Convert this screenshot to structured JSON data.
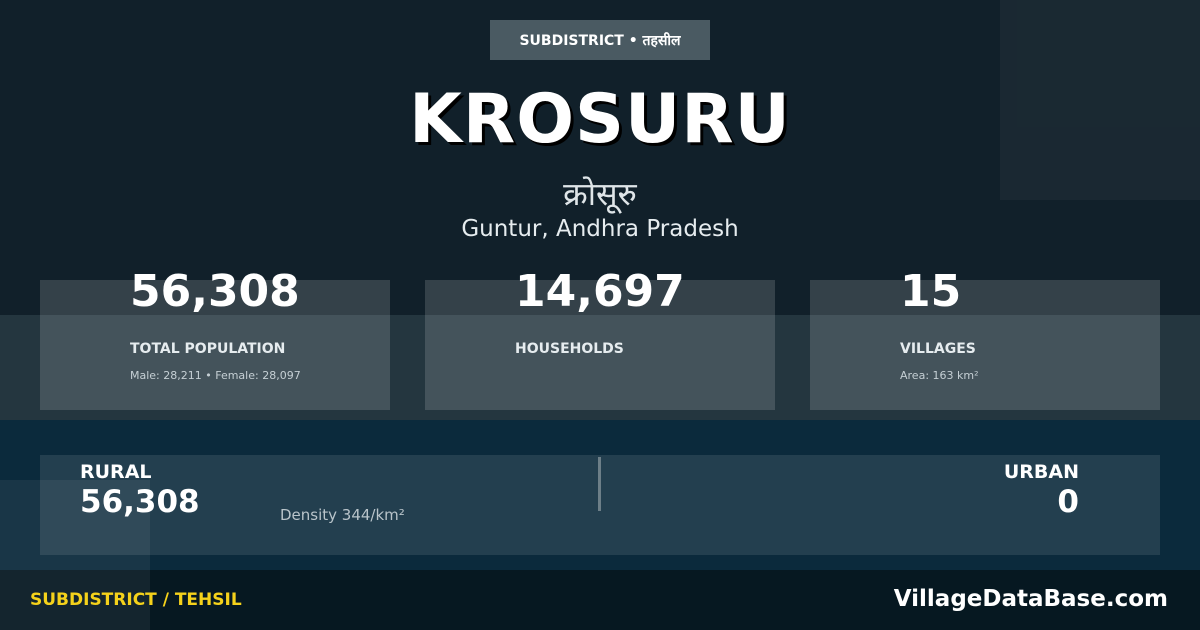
{
  "badge": "SUBDISTRICT • तहसील",
  "title": "KROSURU",
  "title_hindi": "क्रोसूरु",
  "location": "Guntur, Andhra Pradesh",
  "stats": [
    {
      "value": "56,308",
      "label": "TOTAL POPULATION",
      "sub": "Male: 28,211 • Female: 28,097"
    },
    {
      "value": "14,697",
      "label": "HOUSEHOLDS",
      "sub": ""
    },
    {
      "value": "15",
      "label": "VILLAGES",
      "sub": "Area: 163 km²"
    }
  ],
  "rural": {
    "label": "RURAL",
    "value": "56,308"
  },
  "urban": {
    "label": "URBAN",
    "value": "0"
  },
  "density": "Density 344/km²",
  "footer": {
    "left": "SUBDISTRICT / TEHSIL",
    "right": "VillageDataBase.com"
  },
  "colors": {
    "accent": "#f5d21b",
    "background": "#11202a"
  }
}
